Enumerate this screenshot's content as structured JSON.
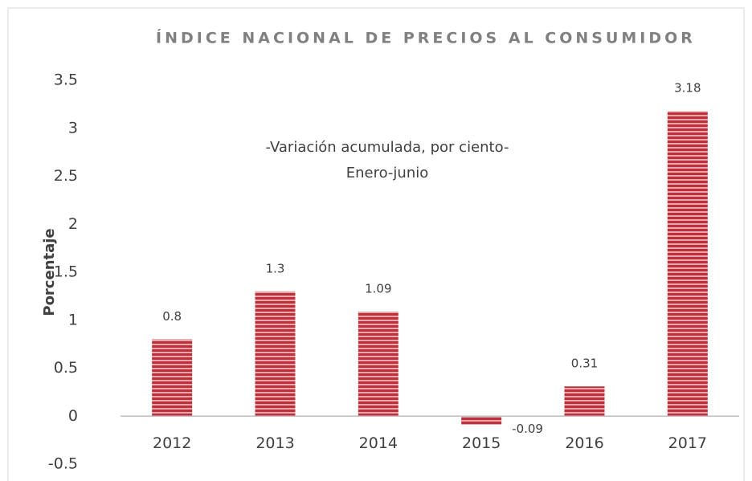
{
  "chart_data": {
    "type": "bar",
    "title": "ÍNDICE NACIONAL DE PRECIOS AL CONSUMIDOR",
    "subtitle": [
      "-Variación acumulada, por ciento-",
      "Enero-junio"
    ],
    "y_label": "Porcentaje",
    "categories": [
      "2012",
      "2013",
      "2014",
      "2015",
      "2016",
      "2017"
    ],
    "values": [
      0.8,
      1.3,
      1.09,
      -0.09,
      0.31,
      3.18
    ],
    "color": "#c0303a",
    "ylim": [
      -0.5,
      3.5
    ],
    "yticks": [
      -0.5,
      0,
      0.5,
      1,
      1.5,
      2,
      2.5,
      3,
      3.5
    ],
    "grid": false
  }
}
